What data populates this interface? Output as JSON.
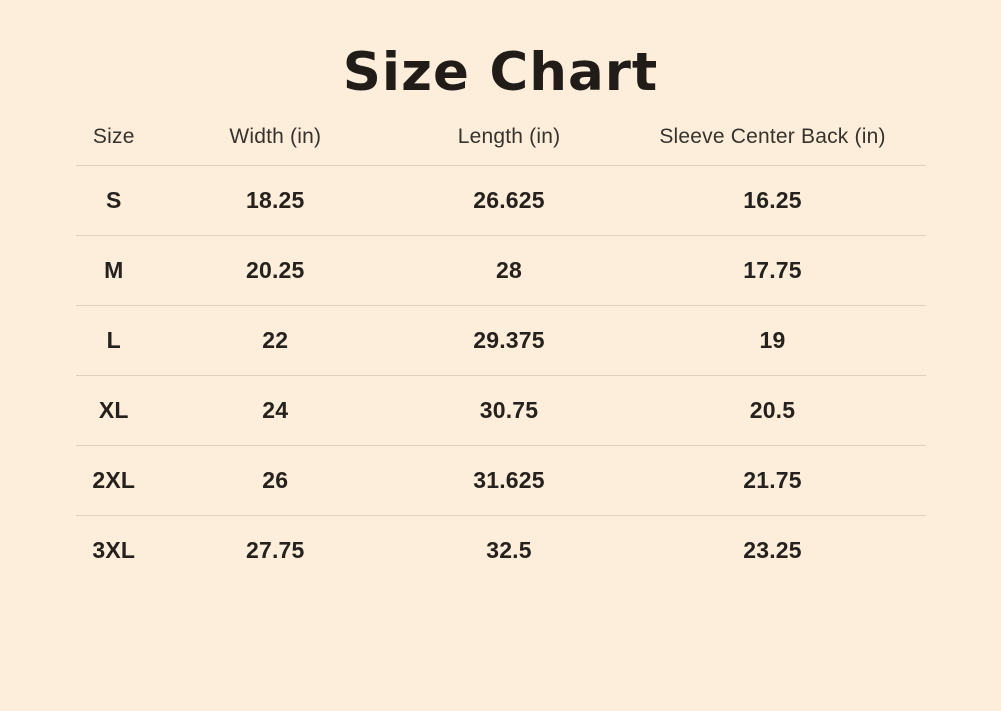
{
  "page": {
    "title": "Size Chart",
    "background_color": "#fceedb",
    "title_color": "#211c18",
    "header_text_color": "#37322c",
    "data_text_color": "#26211d",
    "divider_color": "#ddd1c1"
  },
  "table": {
    "headers": [
      "Size",
      "Width (in)",
      "Length (in)",
      "Sleeve Center Back (in)"
    ],
    "rows": [
      [
        "S",
        "18.25",
        "26.625",
        "16.25"
      ],
      [
        "M",
        "20.25",
        "28",
        "17.75"
      ],
      [
        "L",
        "22",
        "29.375",
        "19"
      ],
      [
        "XL",
        "24",
        "30.75",
        "20.5"
      ],
      [
        "2XL",
        "26",
        "31.625",
        "21.75"
      ],
      [
        "3XL",
        "27.75",
        "32.5",
        "23.25"
      ]
    ]
  },
  "chart_data": {
    "type": "table",
    "title": "Size Chart",
    "columns": [
      "Size",
      "Width (in)",
      "Length (in)",
      "Sleeve Center Back (in)"
    ],
    "units": "inches",
    "rows": [
      [
        "S",
        18.25,
        26.625,
        16.25
      ],
      [
        "M",
        20.25,
        28,
        17.75
      ],
      [
        "L",
        22,
        29.375,
        19
      ],
      [
        "XL",
        24,
        30.75,
        20.5
      ],
      [
        "2XL",
        26,
        31.625,
        21.75
      ],
      [
        "3XL",
        27.75,
        32.5,
        23.25
      ]
    ]
  }
}
